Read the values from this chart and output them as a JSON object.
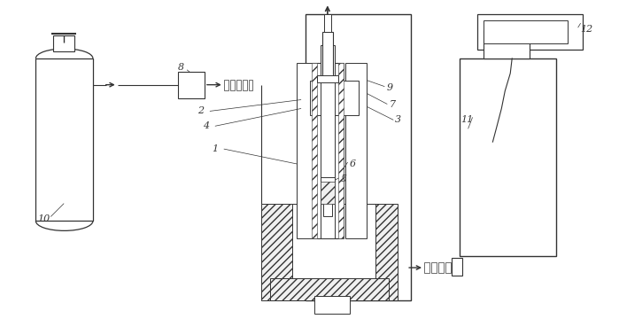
{
  "bg_color": "#ffffff",
  "lc": "#333333",
  "fig_width": 6.99,
  "fig_height": 3.6,
  "dpi": 100
}
